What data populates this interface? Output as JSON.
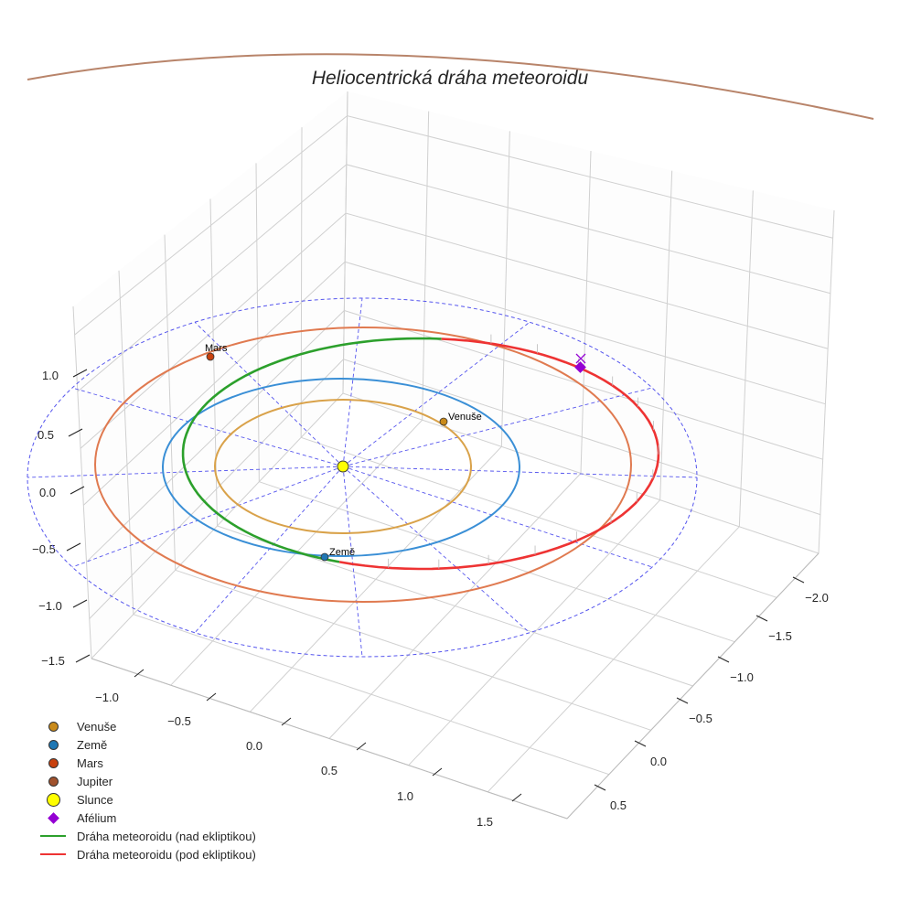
{
  "chart_data": {
    "type": "scatter3d",
    "title": "Heliocentrická dráha meteoroidu",
    "axes": {
      "x": {
        "ticks": [
          "−1.0",
          "−0.5",
          "0.0",
          "0.5",
          "1.0",
          "1.5"
        ],
        "range": [
          -1.25,
          1.75
        ]
      },
      "y": {
        "ticks": [
          "−2.0",
          "−1.5",
          "−1.0",
          "−0.5",
          "0.0",
          "0.5"
        ],
        "range": [
          -2.25,
          0.75
        ]
      },
      "z": {
        "ticks": [
          "1.0",
          "0.5",
          "0.0",
          "−0.5",
          "−1.0",
          "−1.5"
        ],
        "range": [
          -1.5,
          1.25
        ]
      }
    },
    "bodies": [
      {
        "name": "Venuše",
        "orbit_radius_au": 0.72,
        "color": "#c98a1a",
        "orbit_color": "#d9a24a",
        "label": "Venuše"
      },
      {
        "name": "Země",
        "orbit_radius_au": 1.0,
        "color": "#1f77b4",
        "orbit_color": "#3a8fd6",
        "label": "Země"
      },
      {
        "name": "Mars",
        "orbit_radius_au": 1.52,
        "color": "#c8410e",
        "orbit_color": "#e07a50",
        "label": "Mars"
      },
      {
        "name": "Jupiter",
        "orbit_radius_au": 5.2,
        "color": "#a0522d",
        "orbit_color": "#b8846a"
      }
    ],
    "sun": {
      "name": "Slunce",
      "color": "#ffff00"
    },
    "aphelion": {
      "name": "Afélium",
      "color": "#9400d3"
    },
    "legend": {
      "placement": "bottom-left",
      "items": [
        {
          "label": "Venuše",
          "kind": "dot",
          "color": "#c98a1a"
        },
        {
          "label": "Země",
          "kind": "dot",
          "color": "#1f77b4"
        },
        {
          "label": "Mars",
          "kind": "dot",
          "color": "#c8410e"
        },
        {
          "label": "Jupiter",
          "kind": "dot",
          "color": "#a0522d"
        },
        {
          "label": "Slunce",
          "kind": "sun",
          "color": "#ffff00"
        },
        {
          "label": "Afélium",
          "kind": "diamond",
          "color": "#9400d3"
        },
        {
          "label": "Dráha meteoroidu (nad ekliptikou)",
          "kind": "line",
          "color": "#2ca02c"
        },
        {
          "label": "Dráha meteoroidu (pod ekliptikou)",
          "kind": "line",
          "color": "#ee3333"
        }
      ]
    }
  }
}
